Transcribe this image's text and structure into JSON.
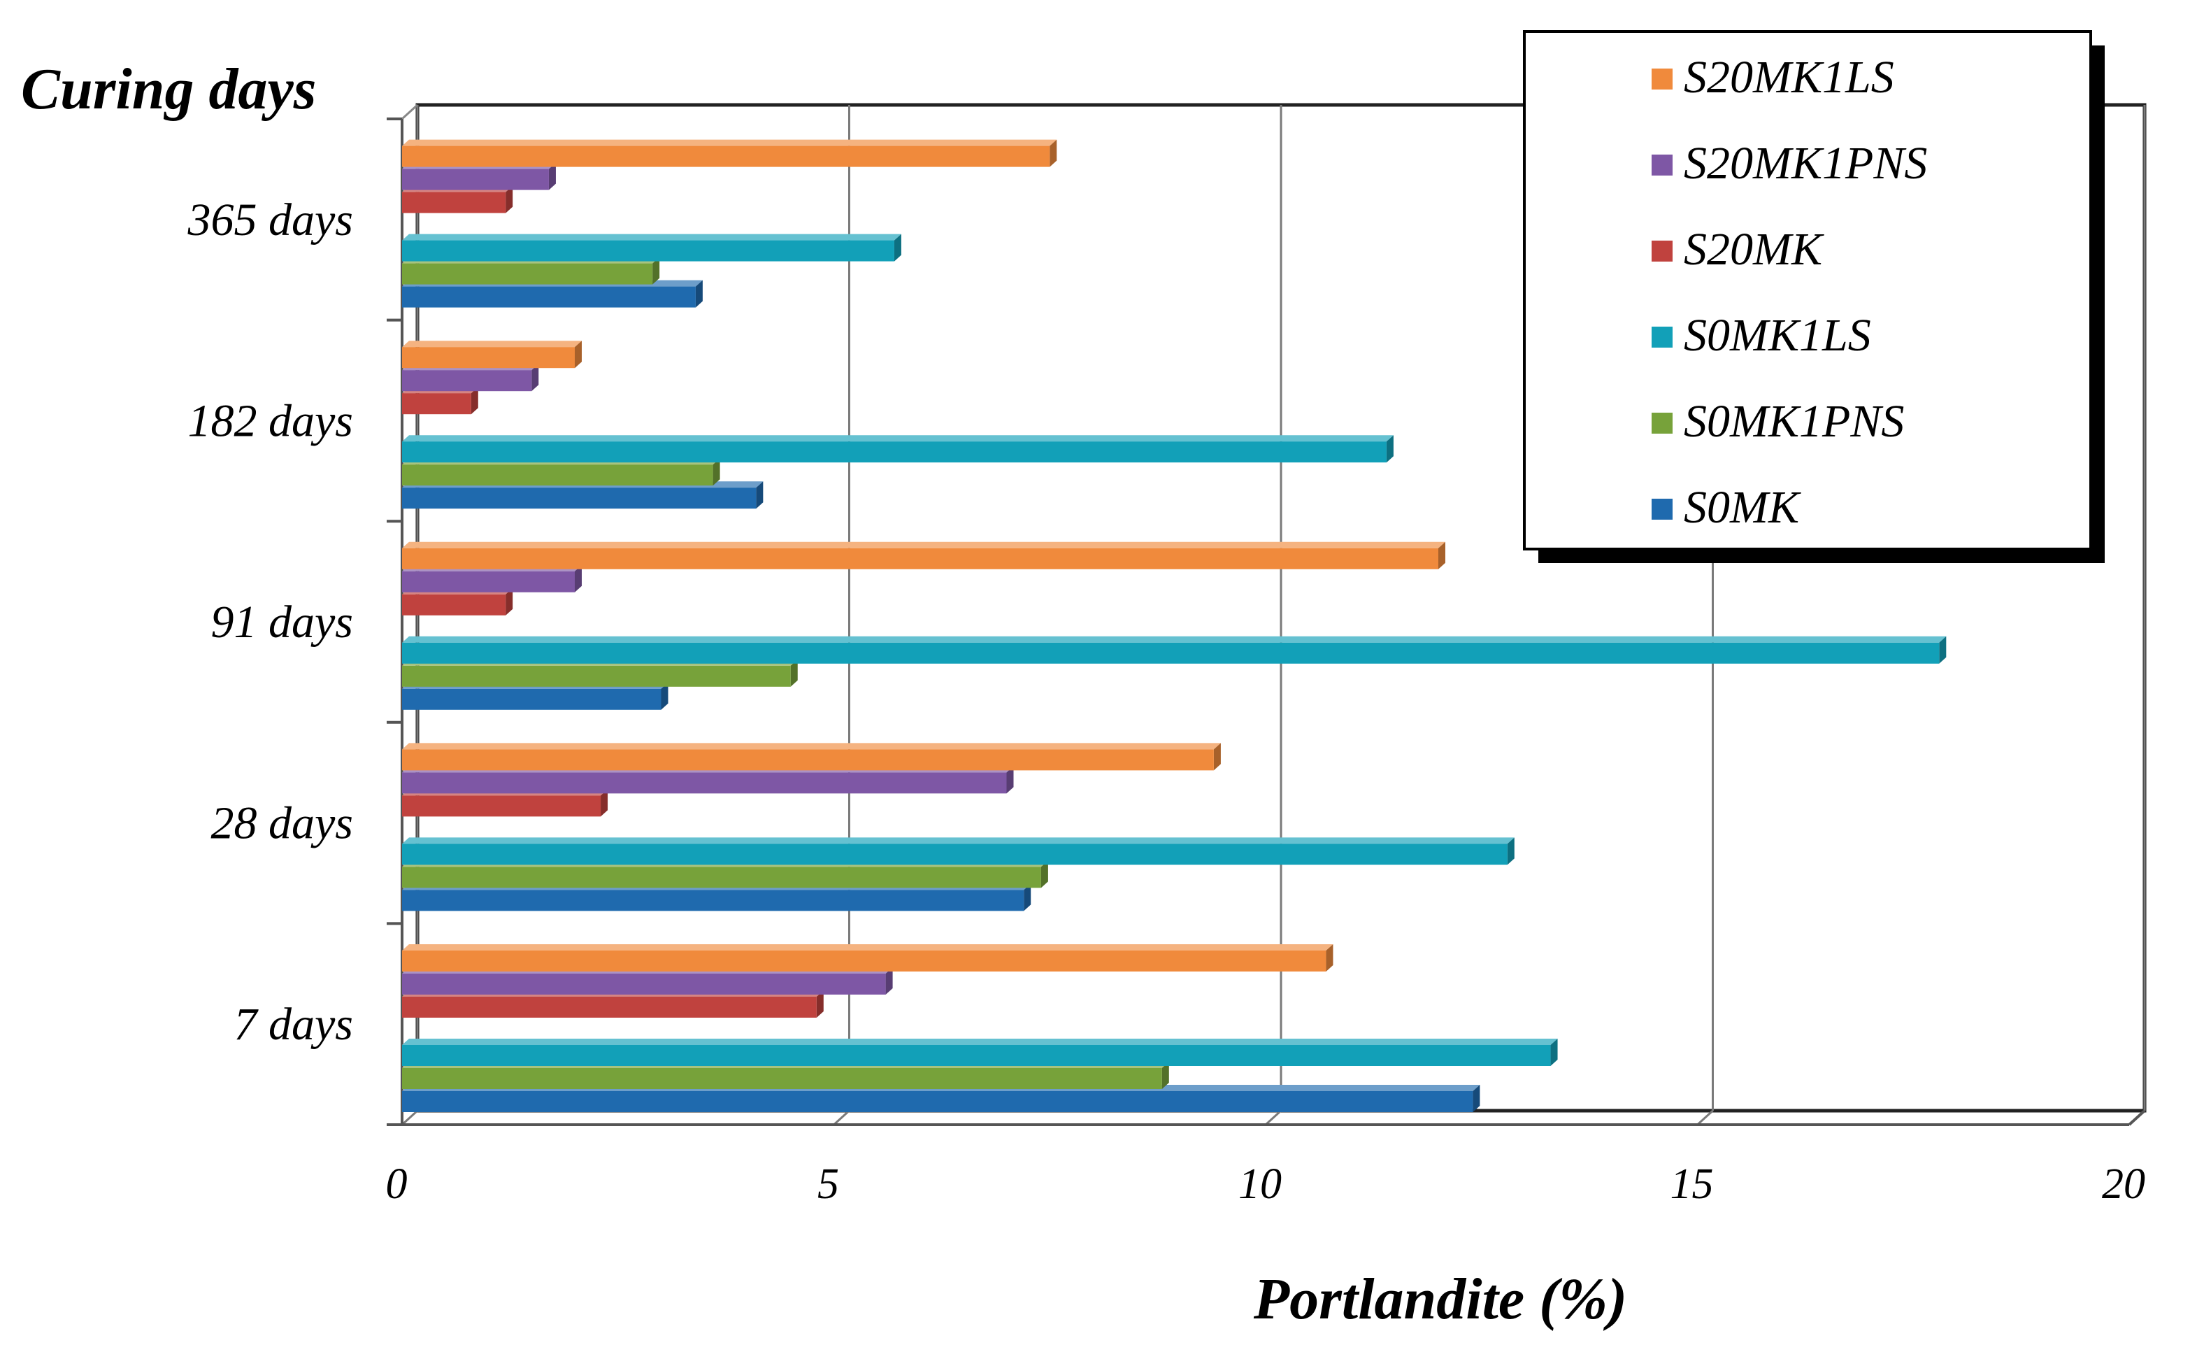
{
  "chart_data": {
    "type": "bar",
    "orientation": "horizontal",
    "title": "",
    "xlabel": "Portlandite (%)",
    "ylabel": "Curing days",
    "xlim": [
      0,
      20
    ],
    "xticks": [
      0,
      5,
      10,
      15,
      20
    ],
    "grid": true,
    "legend_position": "top-right",
    "categories": [
      "7 days",
      "28 days",
      "91 days",
      "182 days",
      "365 days"
    ],
    "series": [
      {
        "name": "S0MK",
        "color": "#1F6AAE",
        "values": [
          12.4,
          7.2,
          3.0,
          4.1,
          3.4
        ]
      },
      {
        "name": "S0MK1PNS",
        "color": "#77A23A",
        "values": [
          8.8,
          7.4,
          4.5,
          3.6,
          2.9
        ]
      },
      {
        "name": "S0MK1LS",
        "color": "#12A0B8",
        "values": [
          13.3,
          12.8,
          17.8,
          11.4,
          5.7
        ]
      },
      {
        "name": "S20MK",
        "color": "#C0423E",
        "values": [
          4.8,
          2.3,
          1.2,
          0.8,
          1.2
        ]
      },
      {
        "name": "S20MK1PNS",
        "color": "#7E57A5",
        "values": [
          5.6,
          7.0,
          2.0,
          1.5,
          1.7
        ]
      },
      {
        "name": "S20MK1LS",
        "color": "#F08A3C",
        "values": [
          10.7,
          9.4,
          12.0,
          2.0,
          7.5
        ]
      }
    ]
  }
}
